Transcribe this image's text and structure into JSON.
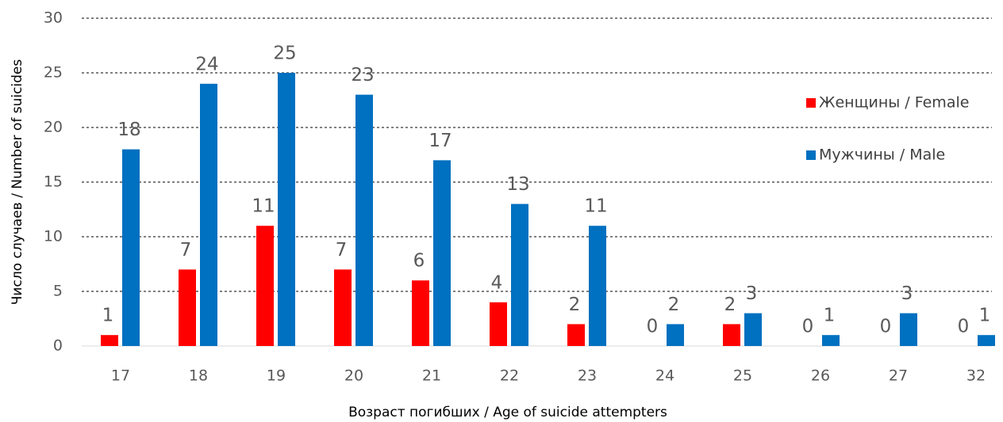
{
  "chart_data": {
    "type": "bar",
    "xlabel": "Возраст погибших / Age of suicide attempters",
    "ylabel": "Число случаев / Number of suicides",
    "categories": [
      "17",
      "18",
      "19",
      "20",
      "21",
      "22",
      "23",
      "24",
      "25",
      "26",
      "27",
      "32"
    ],
    "series": [
      {
        "name": "Женщины / Female",
        "color": "#ff0000",
        "values": [
          1,
          7,
          11,
          7,
          6,
          4,
          2,
          0,
          2,
          0,
          0,
          0
        ]
      },
      {
        "name": "Мужчины / Male",
        "color": "#0070c0",
        "values": [
          18,
          24,
          25,
          23,
          17,
          13,
          11,
          2,
          3,
          1,
          3,
          1
        ]
      }
    ],
    "ylim": [
      0,
      30
    ],
    "yticks": [
      0,
      5,
      10,
      15,
      20,
      25,
      30
    ],
    "grid": true,
    "legend": "right"
  }
}
